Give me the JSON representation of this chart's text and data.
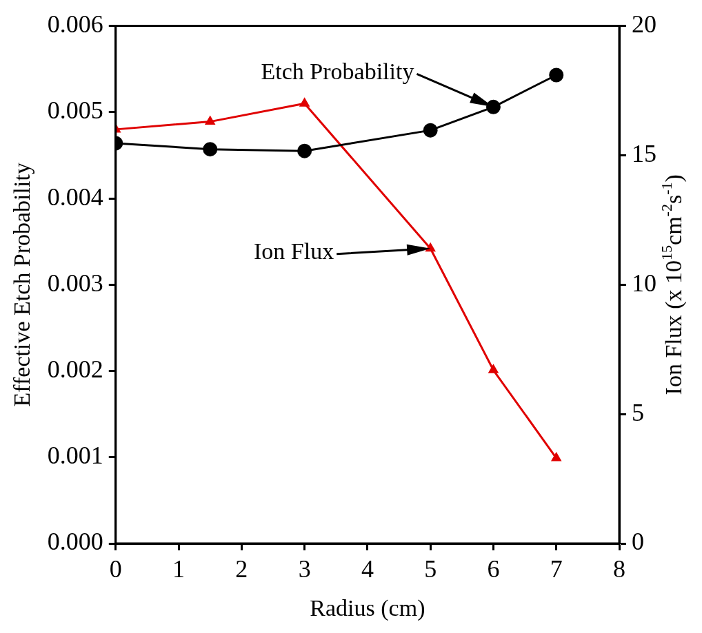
{
  "chart_data": {
    "type": "line",
    "xlabel": "Radius (cm)",
    "ylabel": "Effective Etch Probability",
    "y2label": "Ion Flux (x 10$^{15}$cm$^{-2}$s$^{-1}$)",
    "x": [
      0,
      1.5,
      3,
      5,
      6,
      7
    ],
    "series": [
      {
        "color": "#000000",
        "marker": "circle",
        "values": [
          0.00464,
          0.00457,
          0.00455,
          0.00479,
          0.00506,
          0.00543
        ]
      },
      {
        "color": "#e00000",
        "marker": "triangle",
        "axis": "y2",
        "values": [
          16.0,
          16.3,
          17.0,
          11.4,
          6.7,
          3.3
        ]
      }
    ],
    "annotations": [
      "Etch Probability",
      "Ion Flux"
    ],
    "xlim": [
      0,
      8
    ],
    "xticks": [
      0,
      1,
      2,
      3,
      4,
      5,
      6,
      7,
      8
    ],
    "ylim": [
      0,
      0.006
    ],
    "yticks": [
      {
        "value": 0,
        "label": "0.000"
      },
      0.001,
      0.002,
      0.003,
      0.004,
      0.005,
      0.006
    ],
    "y2lim": [
      0,
      20
    ],
    "y2ticks": [
      0,
      5,
      10,
      15,
      20
    ],
    "grid": false,
    "legend": false,
    "line_style": "solid"
  }
}
